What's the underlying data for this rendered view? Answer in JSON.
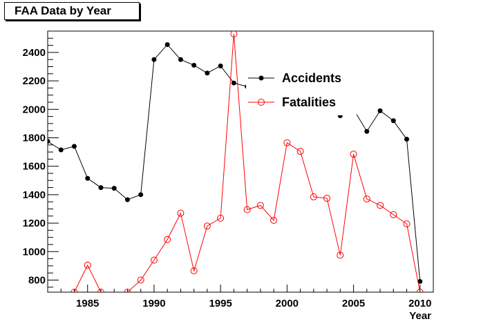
{
  "chart_data": {
    "type": "line",
    "title": "FAA Data by Year",
    "xlabel": "Year",
    "ylabel": "",
    "xlim": [
      1982,
      2011
    ],
    "ylim": [
      715,
      2550
    ],
    "xticks": [
      1985,
      1990,
      1995,
      2000,
      2005,
      2010
    ],
    "yticks": [
      800,
      1000,
      1200,
      1400,
      1600,
      1800,
      2000,
      2200,
      2400
    ],
    "legend_position": "upper-right inside",
    "grid": false,
    "series": [
      {
        "name": "Accidents",
        "color": "#000000",
        "marker": "filled-circle",
        "x": [
          1982,
          1983,
          1984,
          1985,
          1986,
          1987,
          1988,
          1989,
          1990,
          1991,
          1992,
          1993,
          1994,
          1995,
          1996,
          1997,
          1998,
          1999,
          2000,
          2001,
          2002,
          2003,
          2004,
          2005,
          2006,
          2007,
          2008,
          2009,
          2010
        ],
        "y": [
          1775,
          1715,
          1740,
          1515,
          1450,
          1445,
          1365,
          1400,
          2350,
          2455,
          2350,
          2310,
          2255,
          2305,
          2185,
          2160,
          2140,
          2100,
          2080,
          2050,
          2010,
          1980,
          1955,
          2000,
          1845,
          1990,
          1920,
          1790,
          790
        ]
      },
      {
        "name": "Fatalities",
        "color": "#ff0000",
        "marker": "open-circle",
        "x": [
          1982,
          1983,
          1984,
          1985,
          1986,
          1987,
          1988,
          1989,
          1990,
          1991,
          1992,
          1993,
          1994,
          1995,
          1996,
          1997,
          1998,
          1999,
          2000,
          2001,
          2002,
          2003,
          2004,
          2005,
          2006,
          2007,
          2008,
          2009,
          2010
        ],
        "y": [
          560,
          650,
          715,
          905,
          715,
          540,
          715,
          800,
          940,
          1085,
          1270,
          865,
          1180,
          1235,
          2530,
          1295,
          1325,
          1220,
          1765,
          1705,
          1385,
          1375,
          975,
          1685,
          1370,
          1325,
          1260,
          1195,
          715
        ]
      }
    ]
  }
}
